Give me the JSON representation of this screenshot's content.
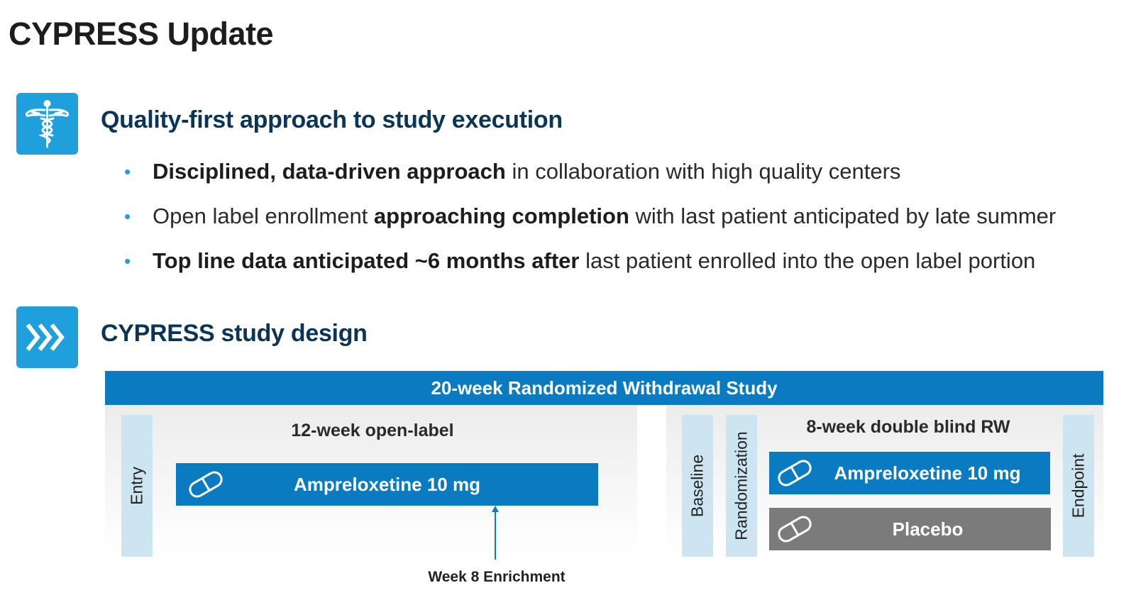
{
  "page": {
    "title": "CYPRESS Update"
  },
  "section1": {
    "icon": "caduceus-icon",
    "heading": "Quality-first approach to study execution",
    "bullets": [
      {
        "bold": "Disciplined, data-driven approach",
        "rest": " in collaboration with high quality centers"
      },
      {
        "pre": "Open label enrollment ",
        "bold": "approaching completion",
        "rest": " with last patient anticipated by late summer"
      },
      {
        "bold": "Top line data anticipated ~6 months after",
        "rest": " last patient enrolled into the open label portion"
      }
    ]
  },
  "section2": {
    "icon": "chevrons-right-icon",
    "heading": "CYPRESS study design"
  },
  "diagram": {
    "banner": "20-week Randomized Withdrawal Study",
    "open_label": {
      "entry_label": "Entry",
      "title": "12-week open-label",
      "drug": "Ampreloxetine 10 mg",
      "enrichment": "Week 8 Enrichment"
    },
    "double_blind": {
      "baseline_label": "Baseline",
      "randomization_label": "Randomization",
      "title": "8-week double blind RW",
      "drug": "Ampreloxetine 10 mg",
      "placebo": "Placebo",
      "endpoint_label": "Endpoint"
    },
    "colors": {
      "accent": "#1fa0dc",
      "bar_blue": "#0a7bc1",
      "placebo_gray": "#7b7b7b",
      "label_blue": "#cde4f1",
      "heading_navy": "#0b3557"
    }
  }
}
